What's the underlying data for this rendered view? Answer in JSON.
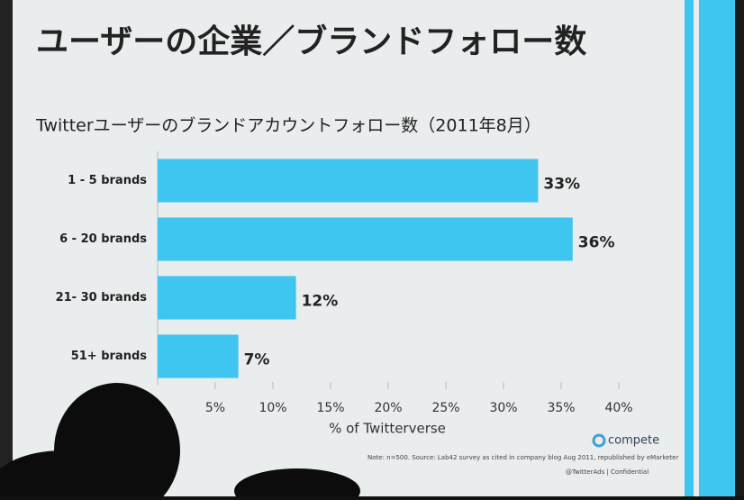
{
  "slide": {
    "title": "ユーザーの企業／ブランドフォロー数",
    "note": "Note: n=500. Source: Lab42 survey as cited in company blog Aug 2011, republished by eMarketer",
    "logo": "compete",
    "footer": "@TwitterAds  |  Confidential"
  },
  "chart_data": {
    "type": "hbar",
    "title": "Twitterユーザーのブランドアカウントフォロー数（2011年8月）",
    "categories": [
      "1 - 5 brands",
      "6 - 20 brands",
      "21- 30 brands",
      "51+ brands"
    ],
    "values": [
      33,
      36,
      12,
      7
    ],
    "value_labels": [
      "33%",
      "36%",
      "12%",
      "7%"
    ],
    "color": "#3fc6f0",
    "xlim": [
      0,
      40
    ],
    "xticks": [
      {
        "value": 5,
        "label": "5%"
      },
      {
        "value": 10,
        "label": "10%"
      },
      {
        "value": 15,
        "label": "15%"
      },
      {
        "value": 20,
        "label": "20%"
      },
      {
        "value": 25,
        "label": "25%"
      },
      {
        "value": 30,
        "label": "30%"
      },
      {
        "value": 35,
        "label": "35%"
      },
      {
        "value": 40,
        "label": "40%"
      }
    ],
    "xlabel": "% of Twitterverse"
  }
}
